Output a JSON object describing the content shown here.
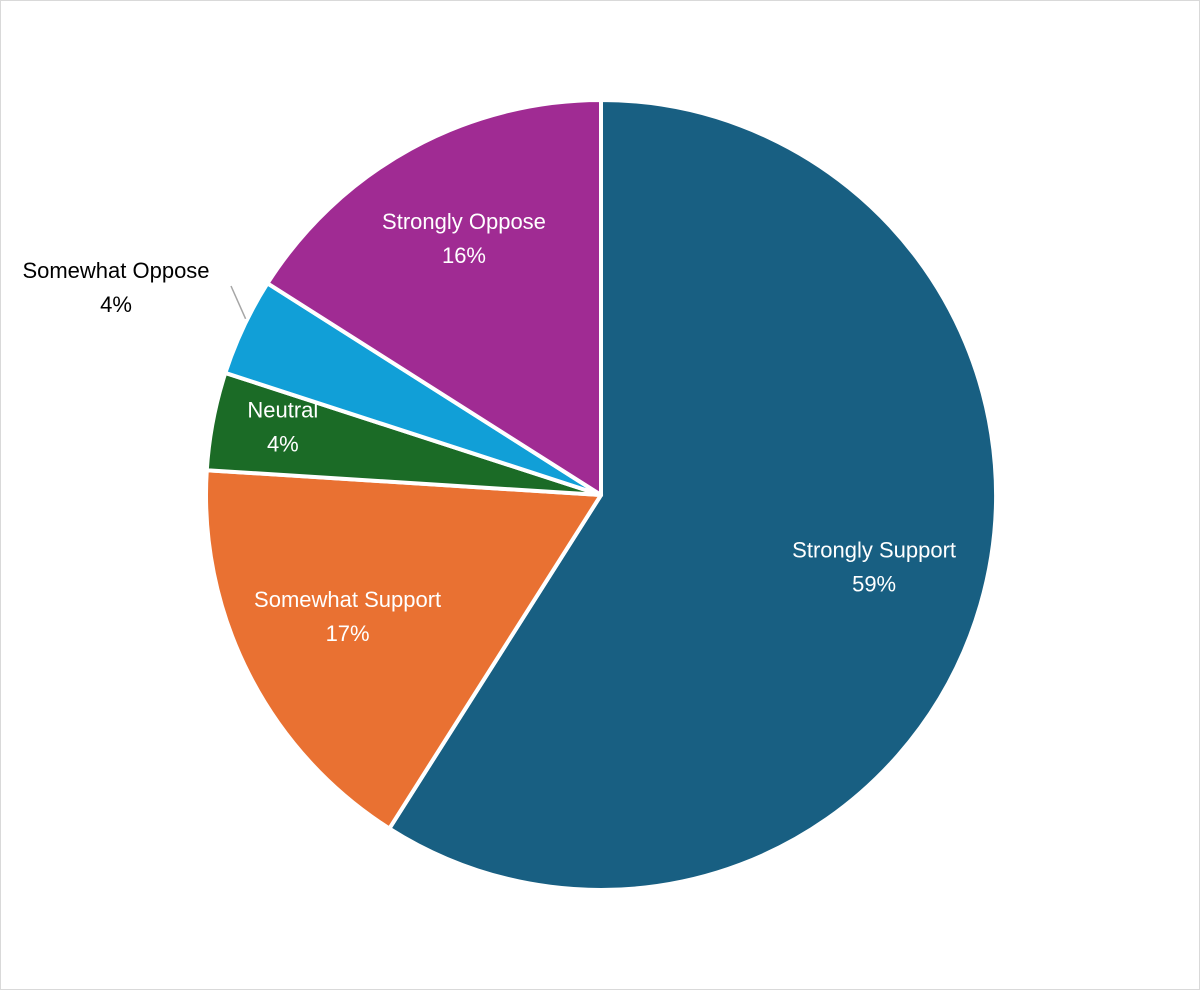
{
  "chart_data": {
    "type": "pie",
    "title": "",
    "start_angle_deg": 0,
    "direction": "clockwise",
    "legend": "none",
    "slices": [
      {
        "label": "Strongly Support",
        "value": 59,
        "value_label": "59%",
        "color": "#185F82",
        "label_color": "#FFFFFF"
      },
      {
        "label": "Somewhat Support",
        "value": 17,
        "value_label": "17%",
        "color": "#E97132",
        "label_color": "#FFFFFF"
      },
      {
        "label": "Neutral",
        "value": 4,
        "value_label": "4%",
        "color": "#1B6B26",
        "label_color": "#FFFFFF"
      },
      {
        "label": "Somewhat Oppose",
        "value": 4,
        "value_label": "4%",
        "color": "#119FD7",
        "label_color": "#000000",
        "label_outside": true
      },
      {
        "label": "Strongly Oppose",
        "value": 16,
        "value_label": "16%",
        "color": "#A02B93",
        "label_color": "#FFFFFF"
      }
    ]
  }
}
